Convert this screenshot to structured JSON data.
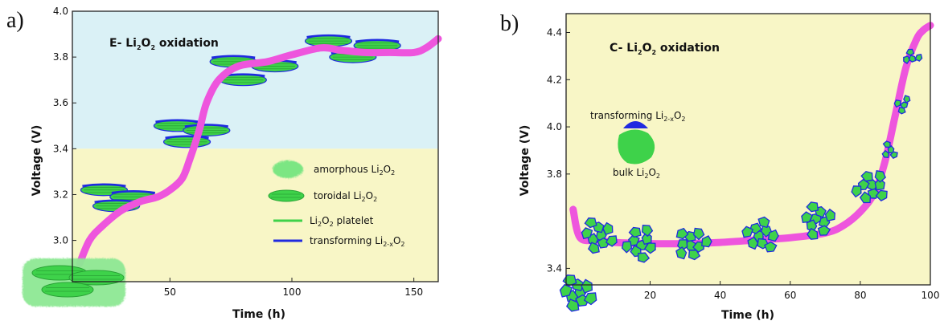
{
  "chart_data": [
    {
      "type": "line",
      "panel_label": "a)",
      "title": "E- Li2O2 oxidation",
      "xlabel": "Time (h)",
      "ylabel": "Voltage (V)",
      "xlim": [
        10,
        160
      ],
      "ylim": [
        2.82,
        4.0
      ],
      "xticks": [
        "50",
        "100",
        "150"
      ],
      "xtick_values": [
        50,
        100,
        150
      ],
      "yticks": [
        "3.0",
        "3.2",
        "3.4",
        "3.6",
        "3.8",
        "4.0"
      ],
      "ytick_values": [
        3.0,
        3.2,
        3.4,
        3.6,
        3.8,
        4.0
      ],
      "colors": {
        "curve": "#ee55dd",
        "upper_bg": "#daf1f6",
        "lower_bg": "#f8f6c6",
        "green": "#3ed24a",
        "blue": "#1f2ae0"
      },
      "background_split_y": 3.4,
      "series": [
        {
          "x": [
            13,
            17,
            22,
            30,
            38,
            45,
            50,
            55,
            58,
            62,
            65,
            70,
            78,
            90,
            100,
            112,
            120,
            130,
            140,
            150,
            155,
            160
          ],
          "y": [
            2.9,
            3.0,
            3.06,
            3.13,
            3.17,
            3.19,
            3.22,
            3.27,
            3.35,
            3.48,
            3.6,
            3.7,
            3.76,
            3.78,
            3.81,
            3.84,
            3.83,
            3.82,
            3.82,
            3.82,
            3.84,
            3.88
          ]
        }
      ],
      "legend": [
        {
          "label": "amorphous Li2O2",
          "symbol": "amorphous"
        },
        {
          "label": "toroidal Li2O2",
          "symbol": "toroid"
        },
        {
          "label": "Li2O2 platelet",
          "symbol": "green-line"
        },
        {
          "label": "transforming Li2-xO2",
          "symbol": "blue-line"
        }
      ],
      "platelet_stacks": [
        {
          "x": 23,
          "y": 3.22
        },
        {
          "x": 35,
          "y": 3.19
        },
        {
          "x": 28,
          "y": 3.15
        },
        {
          "x": 53,
          "y": 3.5
        },
        {
          "x": 65,
          "y": 3.48
        },
        {
          "x": 57,
          "y": 3.43
        },
        {
          "x": 76,
          "y": 3.78
        },
        {
          "x": 93,
          "y": 3.76
        },
        {
          "x": 80,
          "y": 3.7
        },
        {
          "x": 115,
          "y": 3.87
        },
        {
          "x": 135,
          "y": 3.85
        },
        {
          "x": 125,
          "y": 3.8
        }
      ]
    },
    {
      "type": "line",
      "panel_label": "b)",
      "title": "C- Li2O2 oxidation",
      "xlabel": "Time (h)",
      "ylabel": "Voltage (V)",
      "xlim": [
        -4,
        100
      ],
      "ylim": [
        3.33,
        4.48
      ],
      "xticks": [
        "20",
        "40",
        "60",
        "80",
        "100"
      ],
      "xtick_values": [
        20,
        40,
        60,
        80,
        100
      ],
      "yticks": [
        "3.4",
        "3.8",
        "4.0",
        "4.2",
        "4.4"
      ],
      "ytick_values": [
        3.4,
        3.8,
        4.0,
        4.2,
        4.4
      ],
      "colors": {
        "curve": "#ee55dd",
        "bg": "#f8f6c6",
        "green": "#3ed24a",
        "blue": "#1f2ae0"
      },
      "series": [
        {
          "x": [
            -2,
            0,
            5,
            10,
            20,
            30,
            40,
            50,
            60,
            70,
            75,
            80,
            84,
            87,
            90,
            93,
            96,
            98,
            100
          ],
          "y": [
            3.65,
            3.53,
            3.52,
            3.51,
            3.505,
            3.505,
            3.51,
            3.52,
            3.53,
            3.55,
            3.58,
            3.64,
            3.72,
            3.85,
            4.05,
            4.25,
            4.37,
            4.41,
            4.43
          ]
        }
      ],
      "inset": {
        "top_label": "transforming Li2-xO2",
        "bottom_label": "bulk Li2O2"
      },
      "clusters": [
        {
          "x": 5,
          "y": 3.54
        },
        {
          "x": 17,
          "y": 3.51
        },
        {
          "x": 32,
          "y": 3.51
        },
        {
          "x": 52,
          "y": 3.54
        },
        {
          "x": 68,
          "y": 3.6
        },
        {
          "x": 83,
          "y": 3.74
        },
        {
          "x": 88,
          "y": 3.9
        },
        {
          "x": 92,
          "y": 4.1
        },
        {
          "x": 95,
          "y": 4.3
        }
      ]
    }
  ]
}
